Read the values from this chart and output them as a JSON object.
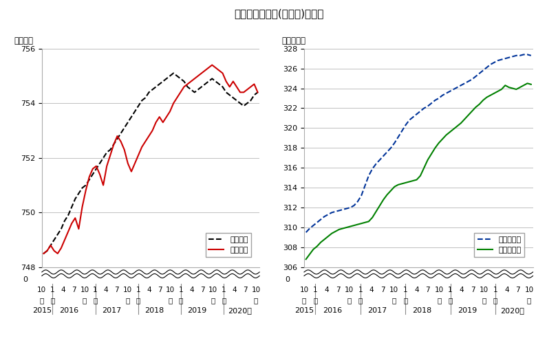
{
  "title": "改定値と推計値(改定前)の比較",
  "left_ylabel": "（万人）",
  "right_ylabel": "（万世帯）",
  "left_ylim": [
    748,
    756
  ],
  "right_ylim": [
    306,
    328
  ],
  "left_yticks": [
    748,
    750,
    752,
    754,
    756
  ],
  "right_yticks": [
    306,
    308,
    310,
    312,
    314,
    316,
    318,
    320,
    322,
    324,
    326,
    328
  ],
  "pop_estimate": [
    748.5,
    748.6,
    748.8,
    749.0,
    749.2,
    749.4,
    749.7,
    749.9,
    750.2,
    750.5,
    750.7,
    750.9,
    751.0,
    751.2,
    751.4,
    751.6,
    751.8,
    752.0,
    752.2,
    752.3,
    752.5,
    752.7,
    752.9,
    753.1,
    753.3,
    753.5,
    753.7,
    753.9,
    754.1,
    754.2,
    754.4,
    754.5,
    754.6,
    754.7,
    754.8,
    754.9,
    755.0,
    755.1,
    755.0,
    754.9,
    754.8,
    754.6,
    754.5,
    754.4,
    754.5,
    754.6,
    754.7,
    754.8,
    754.9,
    754.8,
    754.7,
    754.6,
    754.4,
    754.3,
    754.2,
    754.1,
    754.0,
    753.9,
    754.0,
    754.1,
    754.3,
    754.4
  ],
  "pop_revised": [
    748.5,
    748.6,
    748.8,
    748.6,
    748.5,
    748.7,
    749.0,
    749.3,
    749.6,
    749.8,
    749.4,
    750.2,
    750.8,
    751.3,
    751.6,
    751.7,
    751.4,
    751.0,
    751.7,
    752.1,
    752.5,
    752.8,
    752.6,
    752.3,
    751.8,
    751.5,
    751.8,
    752.1,
    752.4,
    752.6,
    752.8,
    753.0,
    753.3,
    753.5,
    753.3,
    753.5,
    753.7,
    754.0,
    754.2,
    754.4,
    754.6,
    754.7,
    754.8,
    754.9,
    755.0,
    755.1,
    755.2,
    755.3,
    755.4,
    755.3,
    755.2,
    755.1,
    754.8,
    754.6,
    754.8,
    754.6,
    754.4,
    754.4,
    754.5,
    754.6,
    754.7,
    754.4
  ],
  "hh_estimate": [
    309.5,
    309.9,
    310.2,
    310.5,
    310.8,
    311.1,
    311.3,
    311.5,
    311.6,
    311.7,
    311.8,
    311.9,
    312.0,
    312.2,
    312.6,
    313.2,
    314.2,
    315.2,
    315.9,
    316.4,
    316.8,
    317.2,
    317.6,
    318.0,
    318.5,
    319.1,
    319.7,
    320.3,
    320.8,
    321.1,
    321.4,
    321.7,
    322.0,
    322.2,
    322.5,
    322.8,
    323.0,
    323.3,
    323.5,
    323.7,
    323.9,
    324.1,
    324.3,
    324.5,
    324.7,
    324.9,
    325.2,
    325.5,
    325.8,
    326.1,
    326.4,
    326.6,
    326.8,
    326.9,
    327.0,
    327.1,
    327.2,
    327.3,
    327.3,
    327.4,
    327.4,
    327.3
  ],
  "hh_revised": [
    306.8,
    307.3,
    307.8,
    308.1,
    308.5,
    308.8,
    309.1,
    309.4,
    309.6,
    309.8,
    309.9,
    310.0,
    310.1,
    310.2,
    310.3,
    310.4,
    310.5,
    310.6,
    311.0,
    311.6,
    312.2,
    312.8,
    313.3,
    313.7,
    314.1,
    314.3,
    314.4,
    314.5,
    314.6,
    314.7,
    314.8,
    315.2,
    316.0,
    316.8,
    317.4,
    318.0,
    318.5,
    318.9,
    319.3,
    319.6,
    319.9,
    320.2,
    320.5,
    320.9,
    321.3,
    321.7,
    322.1,
    322.4,
    322.8,
    323.1,
    323.3,
    323.5,
    323.7,
    323.9,
    324.3,
    324.1,
    324.0,
    323.9,
    324.1,
    324.3,
    324.5,
    324.4
  ],
  "pop_color": "#cc0000",
  "pop_estimate_color": "#000000",
  "hh_color": "#008000",
  "hh_estimate_color": "#003399",
  "background_color": "#ffffff",
  "grid_color": "#c0c0c0",
  "legend1_labels": [
    "推計人口",
    "改定人口"
  ],
  "legend2_labels": [
    "推計世帯数",
    "改定世帯数"
  ],
  "left_axis_label": "（万人）",
  "right_axis_label": "（万世帯）"
}
